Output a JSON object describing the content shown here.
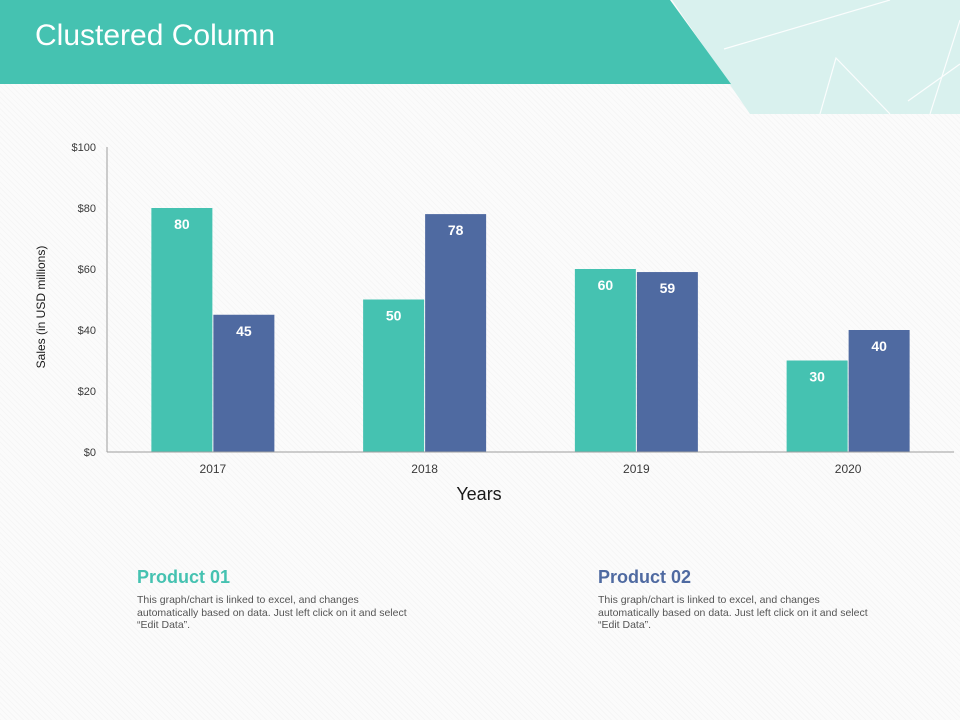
{
  "slide": {
    "title": "Clustered Column"
  },
  "colors": {
    "accent": "#45c2b1",
    "series1": "#45c2b1",
    "series2": "#4f6aa1",
    "decor_light": "#d9f1ee",
    "axis": "#9e9e9e",
    "text_dark": "#3a3a3a"
  },
  "chart_data": {
    "type": "bar",
    "categories": [
      "2017",
      "2018",
      "2019",
      "2020"
    ],
    "series": [
      {
        "name": "Product 01",
        "values": [
          80,
          50,
          60,
          30
        ]
      },
      {
        "name": "Product 02",
        "values": [
          45,
          78,
          59,
          40
        ]
      }
    ],
    "ylim": [
      0,
      100
    ],
    "yticks": [
      0,
      20,
      40,
      60,
      80,
      100
    ],
    "ytick_labels": [
      "$0",
      "$20",
      "$40",
      "$60",
      "$80",
      "$100"
    ],
    "xlabel": "Years",
    "ylabel": "Sales (in USD millions)",
    "data_labels": true,
    "grid": false,
    "legend": "none"
  },
  "products": [
    {
      "title": "Product 01",
      "description": "This graph/chart is linked to excel, and changes automatically based on data. Just left click on it and select “Edit Data”."
    },
    {
      "title": "Product 02",
      "description": "This graph/chart is linked to excel, and changes automatically based on data. Just left click on it and select “Edit Data”."
    }
  ]
}
